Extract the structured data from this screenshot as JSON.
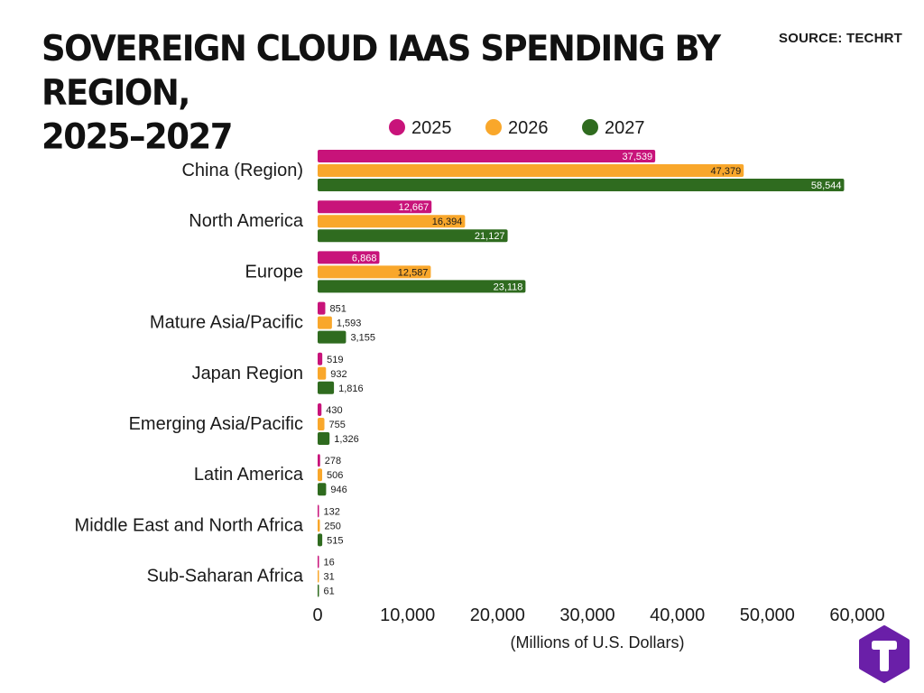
{
  "header": {
    "title_line1": "SOVEREIGN CLOUD IAAS SPENDING BY REGION,",
    "title_line2": "2025–2027",
    "source": "SOURCE: TECHRT"
  },
  "logo": {
    "icon": "techrt-logo-icon",
    "bg_color": "#6a1fa8",
    "fg_color": "#ffffff"
  },
  "chart_data": {
    "type": "bar",
    "orientation": "horizontal",
    "categories": [
      "China (Region)",
      "North America",
      "Europe",
      "Mature Asia/Pacific",
      "Japan Region",
      "Emerging Asia/Pacific",
      "Latin America",
      "Middle East and North Africa",
      "Sub-Saharan Africa"
    ],
    "series": [
      {
        "name": "2025",
        "color": "#c8137a",
        "values": [
          37539,
          12667,
          6868,
          851,
          519,
          430,
          278,
          132,
          16
        ],
        "labels": [
          "37,539",
          "12,667",
          "6,868",
          "851",
          "519",
          "430",
          "278",
          "132",
          "16"
        ]
      },
      {
        "name": "2026",
        "color": "#f9a72b",
        "values": [
          47379,
          16394,
          12587,
          1593,
          932,
          755,
          506,
          250,
          31
        ],
        "labels": [
          "47,379",
          "16,394",
          "12,587",
          "1,593",
          "932",
          "755",
          "506",
          "250",
          "31"
        ]
      },
      {
        "name": "2027",
        "color": "#2f6b1f",
        "values": [
          58544,
          21127,
          23118,
          3155,
          1816,
          1326,
          946,
          515,
          61
        ],
        "labels": [
          "58,544",
          "21,127",
          "23,118",
          "3,155",
          "1,816",
          "1,326",
          "946",
          "515",
          "61"
        ]
      }
    ],
    "xlabel": "(Millions of U.S. Dollars)",
    "ylabel": "",
    "xlim": [
      0,
      60000
    ],
    "xticks": [
      0,
      10000,
      20000,
      30000,
      40000,
      50000,
      60000
    ],
    "xtick_labels": [
      "0",
      "10,000",
      "20,000",
      "30,000",
      "40,000",
      "50,000",
      "60,000"
    ],
    "grid": false,
    "legend_position": "top"
  }
}
